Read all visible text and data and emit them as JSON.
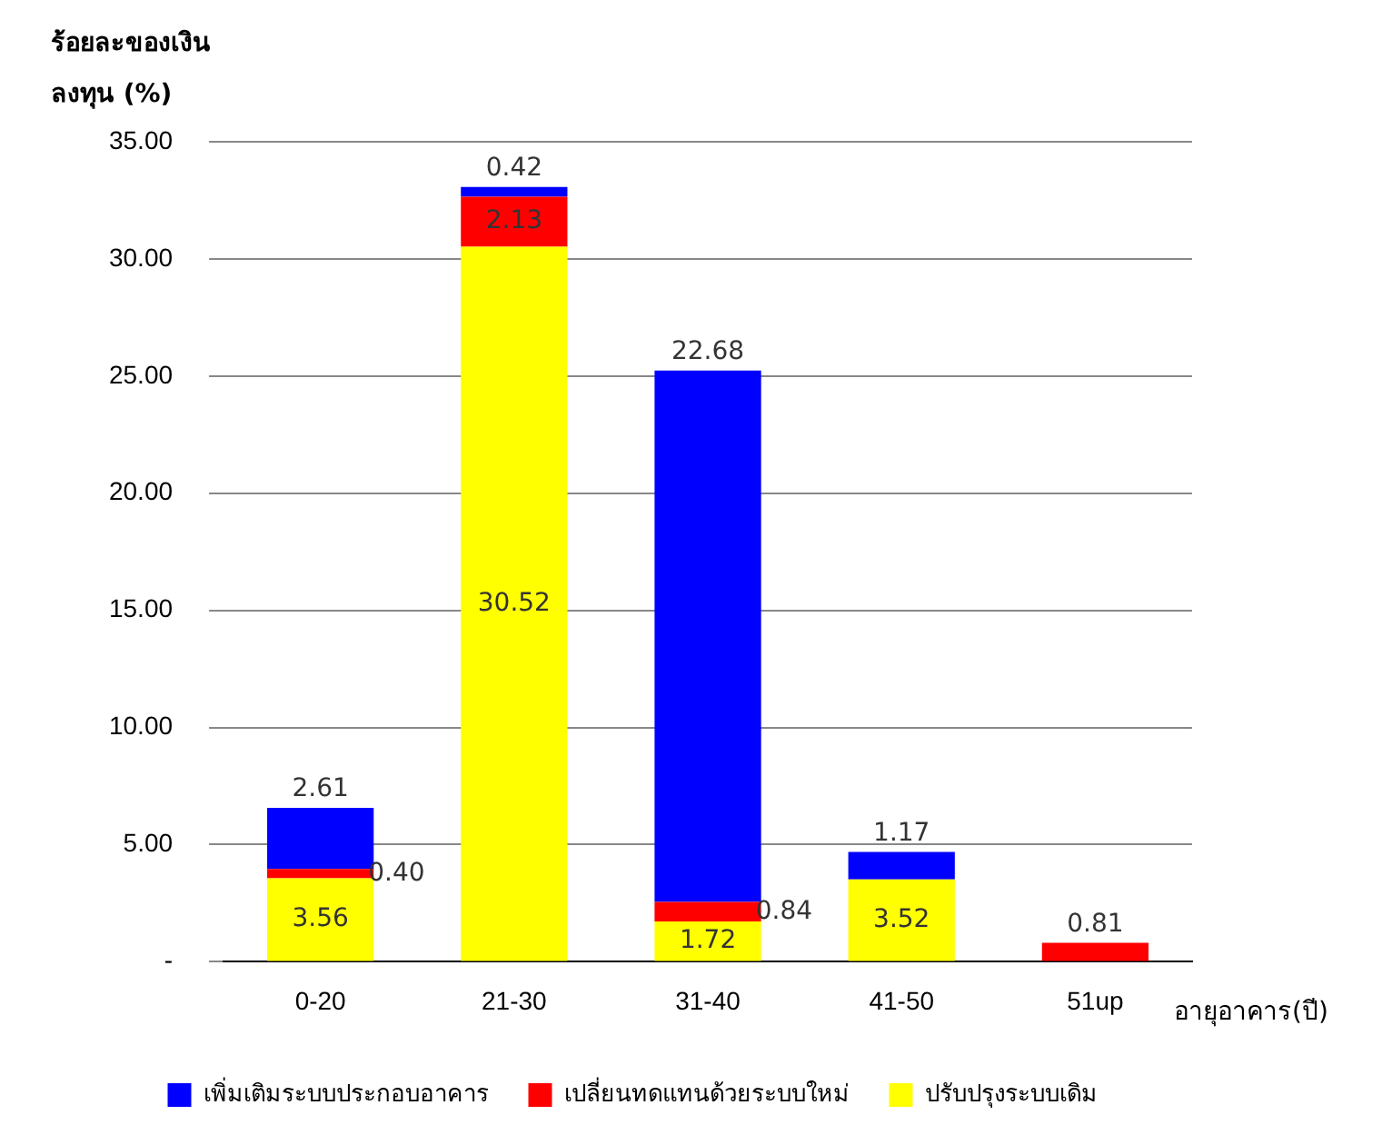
{
  "chart_data": {
    "type": "bar",
    "stacked": true,
    "ylabel": "ร้อยละของเงิน ลงทุน (%)",
    "xlabel": "อายุอาคาร(ปี)",
    "categories": [
      "0-20",
      "21-30",
      "31-40",
      "41-50",
      "51up"
    ],
    "series": [
      {
        "name": "ปรับปรุงระบบเดิม",
        "color": "#ffff00",
        "values": [
          3.56,
          30.52,
          1.72,
          3.52,
          null
        ],
        "value_labels": [
          "3.56",
          "30.52",
          "1.72",
          "3.52",
          null
        ]
      },
      {
        "name": "เปลี่ยนทดแทนด้วยระบบใหม่",
        "color": "#ff0000",
        "values": [
          0.4,
          2.13,
          0.84,
          null,
          0.81
        ],
        "value_labels": [
          "0.40",
          "2.13",
          "0.84",
          null,
          "0.81"
        ]
      },
      {
        "name": "เพิ่มเติมระบบประกอบอาคาร",
        "color": "#0000ff",
        "values": [
          2.61,
          0.42,
          22.68,
          1.17,
          null
        ],
        "value_labels": [
          "2.61",
          "0.42",
          "22.68",
          "1.17",
          null
        ]
      }
    ],
    "ylim": [
      0,
      35
    ],
    "yticks": [
      {
        "value": 0,
        "label": "-"
      },
      {
        "value": 5,
        "label": "5.00"
      },
      {
        "value": 10,
        "label": "10.00"
      },
      {
        "value": 15,
        "label": "15.00"
      },
      {
        "value": 20,
        "label": "20.00"
      },
      {
        "value": 25,
        "label": "25.00"
      },
      {
        "value": 30,
        "label": "30.00"
      },
      {
        "value": 35,
        "label": "35.00"
      }
    ],
    "grid": "y",
    "legend": "bottom"
  }
}
